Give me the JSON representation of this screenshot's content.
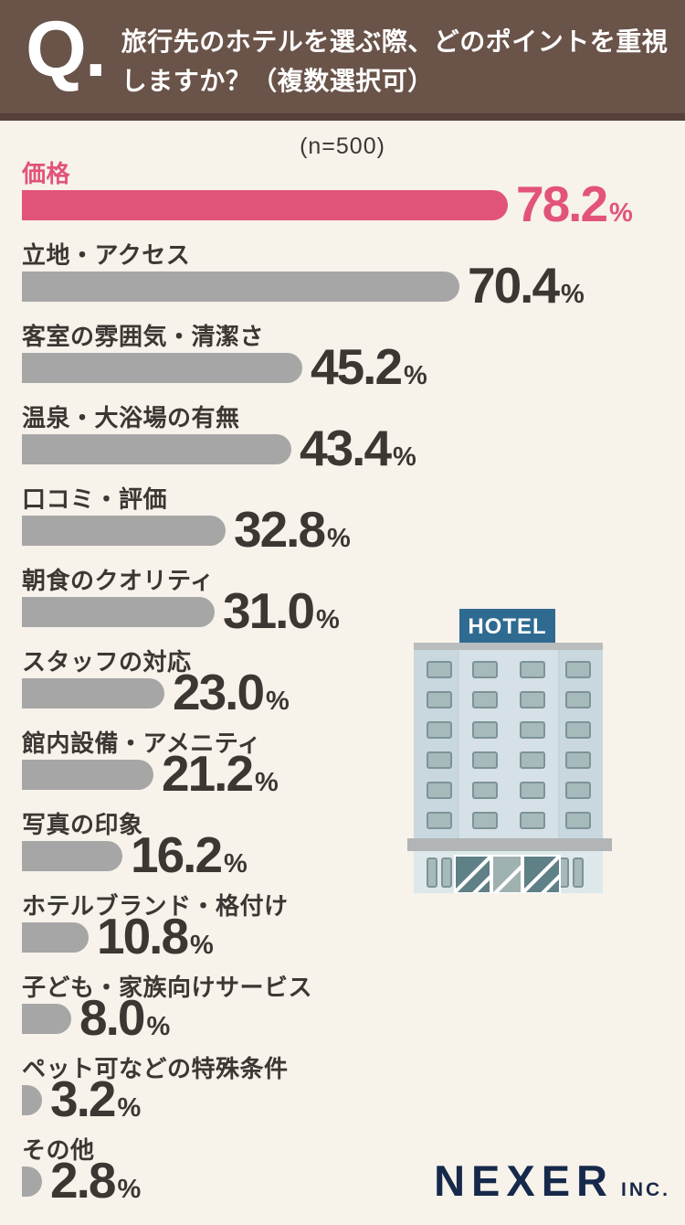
{
  "header": {
    "q_mark": "Q.",
    "title_line1": "旅行先のホテルを選ぶ際、どのポイントを重視",
    "title_line2": "しますか？（複数選択可）"
  },
  "sample_label": "(n=500)",
  "chart_data": {
    "type": "bar",
    "orientation": "horizontal",
    "title": "旅行先のホテルを選ぶ際、どのポイントを重視しますか？（複数選択可）",
    "sample_size": 500,
    "unit": "%",
    "xlim": [
      0,
      80
    ],
    "categories": [
      "価格",
      "立地・アクセス",
      "客室の雰囲気・清潔さ",
      "温泉・大浴場の有無",
      "口コミ・評価",
      "朝食のクオリティ",
      "スタッフの対応",
      "館内設備・アメニティ",
      "写真の印象",
      "ホテルブランド・格付け",
      "子ども・家族向けサービス",
      "ペット可などの特殊条件",
      "その他"
    ],
    "values": [
      78.2,
      70.4,
      45.2,
      43.4,
      32.8,
      31.0,
      23.0,
      21.2,
      16.2,
      10.8,
      8.0,
      3.2,
      2.8
    ],
    "highlight_index": 0,
    "legend": null,
    "grid": false
  },
  "hotel_illustration": {
    "sign_text": "HOTEL"
  },
  "footer": {
    "brand": "NEXER",
    "suffix": "INC."
  },
  "colors": {
    "header_bg": "#6a5349",
    "header_strip": "#564039",
    "page_bg": "#f7f2ea",
    "accent_pink": "#e2537a",
    "bar_gray": "#a6a6a6",
    "text_dark": "#3b3733",
    "logo_navy": "#17294a",
    "hotel_sign_blue": "#2f6a91"
  }
}
